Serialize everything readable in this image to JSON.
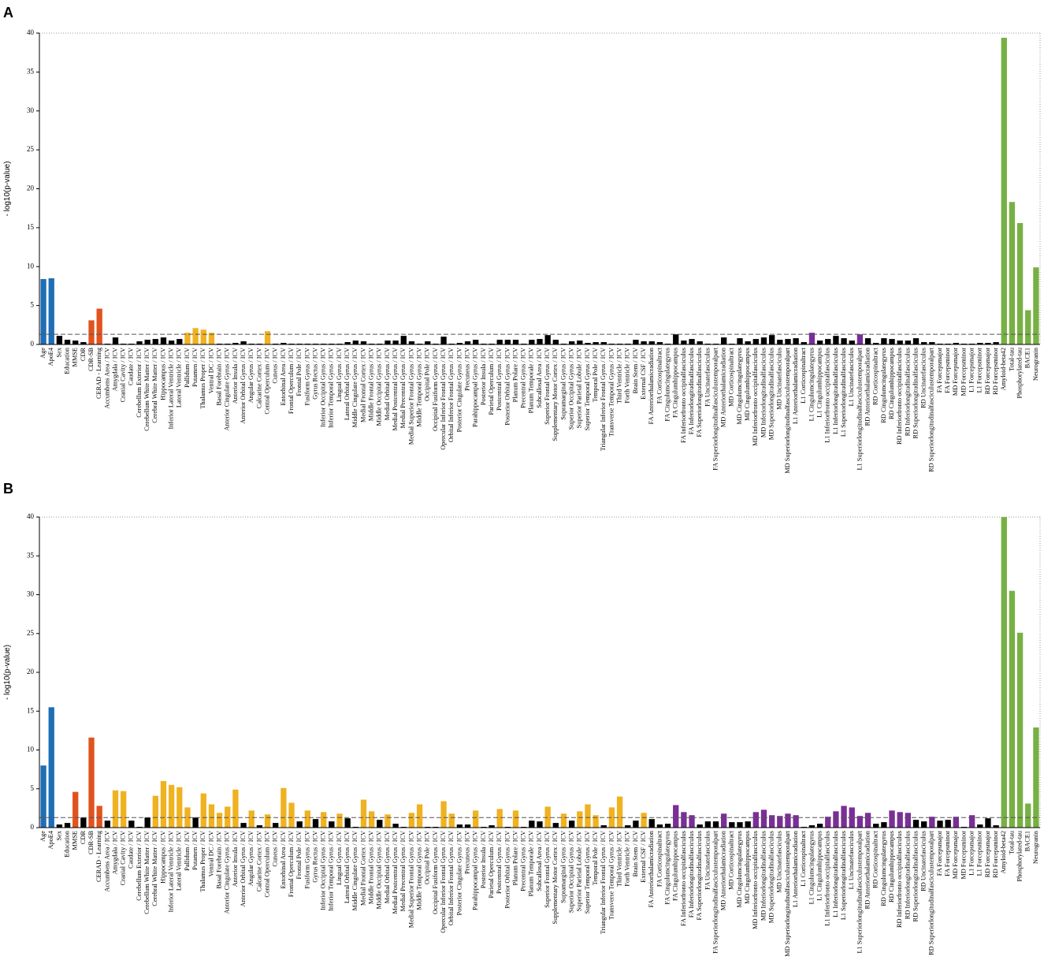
{
  "chart_data": [
    {
      "type": "bar",
      "panel_label": "A",
      "ylabel": "- log10(p-value)",
      "ylim": [
        0,
        40
      ],
      "yticks": [
        0,
        5,
        10,
        15,
        20,
        25,
        30,
        35,
        40
      ],
      "reference_line": 1.3,
      "categories": [
        "Age",
        "ApoE4",
        "Sex",
        "Education",
        "MMSE",
        "CDR",
        "CDR-SB",
        "CERAD - Learning",
        "Accumbens Area / ICV",
        "Amygdala / ICV",
        "Cranial Cavity / ICV",
        "Caudate / ICV",
        "Cerebellum Exterior / ICV",
        "Cerebellum White Matter / ICV",
        "Cerebral White Matter / ICV",
        "Hippocampus / ICV",
        "Inferior Lateral Ventricle / ICV",
        "Lateral Ventricle / ICV",
        "Pallidum / ICV",
        "Putamen / ICV",
        "Thalamus Proper / ICV",
        "Ventral DC / ICV",
        "Basal Forebrain / ICV",
        "Anterior Cingulate Gyrus / ICV",
        "Anterior Insula / ICV",
        "Anterior Orbital Gyrus / ICV",
        "Angular Gyrus / ICV",
        "Calcarine Cortex / ICV",
        "Central Operculum / ICV",
        "Cuneus / ICV",
        "Entorhinal Area / ICV",
        "Frontal Operculum / ICV",
        "Frontal Pole / ICV",
        "Fusiform Gyrus / ICV",
        "Gyrus Rectus / ICV",
        "Inferior Occipital Gyrus / ICV",
        "Inferior Temporal Gyrus / ICV",
        "Lingual Gyrus / ICV",
        "Lateral Orbital Gyrus / ICV",
        "Middle Cingulate Gyrus / ICV",
        "Medial Frontal Cortex / ICV",
        "Middle Frontal Gyrus / ICV",
        "Middle Occipital Gyrus / ICV",
        "Medial Orbital Gyrus / ICV",
        "Medial Postcentral Gyrus / ICV",
        "Medial Precentral Gyrus / ICV",
        "Medial Superior Frontal Gyrus / ICV",
        "Middle Temporal Gyrus / ICV",
        "Occipital Pole / ICV",
        "Occipital Fusiform Gyrus / ICV",
        "Opercular Inferior Frontal Gyrus / ICV",
        "Orbital Inferior Frontal Gyrus / ICV",
        "Posterior Cingulate Gyrus / ICV",
        "Precuneus / ICV",
        "Parahippocampal Gyrus / ICV",
        "Posterior Insula / ICV",
        "Parietal Operculum / ICV",
        "Postcentral Gyrus / ICV",
        "Posterior Orbital Gyrus / ICV",
        "Planum Polare / ICV",
        "Precentral Gyrus / ICV",
        "Planum Temporale / ICV",
        "Subcallosal Area / ICV",
        "Superior Frontal Gyrus / ICV",
        "Supplementary Motor Cortex / ICV",
        "Supramarginal Gyrus / ICV",
        "Superior Occipital Gyrus / ICV",
        "Superior Parietal Lobule / ICV",
        "Superior Temporal Gyrus / ICV",
        "Temporal Pole / ICV",
        "Triangular Inferior Frontal Gyrus / ICV",
        "Transverse Temporal Gyrus / ICV",
        "Third Ventricle / ICV",
        "Forth Ventricle / ICV",
        "Brain Stem / ICV",
        "External CSF / ICV",
        "FA Anteriorthalamicradiation",
        "FA Corticospinaltract",
        "FA Cingulumcingulategyrus",
        "FA Cingulumhippocampus",
        "FA Inferiorfronto occipitalfasciculus",
        "FA Inferiorlongitudinalfasciculus",
        "FA Superiorlongitudinalfasciculus",
        "FA Uncinatefasciculus",
        "FA Superiorlongitudinalfasciculustemporalpart",
        "MD Anteriorthalamicradiation",
        "MD Corticospinaltract",
        "MD Cingulumcingulategyrus",
        "MD Cingulumhippocampus",
        "MD Inferiorfronto occipitalfasciculus",
        "MD Inferiorlongitudinalfasciculus",
        "MD Superiorlongitudinalfasciculus",
        "MD Uncinatefasciculus",
        "MD Superiorlongitudinalfasciculustemporalpart",
        "L1 Anteriorthalamicradiation",
        "L1 Corticospinaltract",
        "L1 Cingulumcingulategyrus",
        "L1 Cingulumhippocampus",
        "L1 Inferiorfronto occipitalfasciculus",
        "L1 Inferiorlongitudinalfasciculus",
        "L1 Superiorlongitudinalfasciculus",
        "L1 Uncinatefasciculus",
        "L1 Superiorlongitudinalfasciculustemporalpart",
        "RD Anteriorthalamicradiation",
        "RD Corticospinaltract",
        "RD Cingulumcingulategyrus",
        "RD Cingulumhippocampus",
        "RD Inferiorfronto occipitalfasciculus",
        "RD Inferiorlongitudinalfasciculus",
        "RD Superiorlongitudinalfasciculus",
        "RD Uncinatefasciculus",
        "RD Superiorlongitudinalfasciculustemporalpart",
        "FA Forcepsmajor",
        "FA Forcepsminor",
        "MD Forcepsmajor",
        "MD Forcepsminor",
        "L1 Forcepsmajor",
        "L1 Forcepsminor",
        "RD Forcepsmajor",
        "RD Forcepsminor",
        "Amyloid-beta42",
        "Total-tau",
        "Phosphorylated-tau",
        "BACE1",
        "Neurogranin"
      ],
      "values": [
        8.4,
        8.5,
        1.1,
        0.6,
        0.5,
        0.3,
        3.1,
        4.6,
        0.1,
        0.9,
        0.1,
        0.1,
        0.4,
        0.6,
        0.7,
        0.9,
        0.5,
        0.7,
        1.5,
        2.1,
        1.9,
        1.5,
        0.1,
        0.1,
        0.2,
        0.4,
        0.1,
        0.1,
        1.7,
        0.1,
        0.2,
        0.1,
        0.1,
        0.1,
        0.1,
        0.1,
        0.1,
        0.1,
        0.3,
        0.5,
        0.4,
        0.1,
        0.1,
        0.5,
        0.5,
        1.1,
        0.4,
        0.1,
        0.4,
        0.1,
        1.0,
        0.1,
        0.2,
        0.4,
        0.6,
        0.1,
        0.1,
        0.6,
        0.6,
        0.6,
        0.1,
        0.6,
        0.7,
        1.2,
        0.6,
        0.1,
        0.4,
        0.5,
        0.2,
        0.3,
        0.3,
        0.1,
        0.1,
        0.1,
        0.6,
        0.4,
        0.4,
        0.3,
        0.1,
        1.3,
        0.5,
        0.7,
        0.4,
        0.1,
        0.1,
        0.9,
        0.1,
        0.8,
        0.4,
        0.7,
        0.9,
        1.2,
        0.6,
        0.7,
        0.8,
        0.3,
        1.5,
        0.5,
        0.7,
        1.1,
        0.8,
        0.5,
        1.3,
        0.8,
        0.2,
        0.8,
        0.7,
        0.5,
        0.5,
        0.8,
        0.3,
        0.3,
        0.1,
        0.1,
        0.2,
        0.1,
        0.1,
        0.2,
        0.2,
        0.3,
        39.4,
        18.3,
        15.6,
        4.4,
        9.9
      ],
      "colors": [
        "#1f6db5",
        "#1f6db5",
        "#000",
        "#000",
        "#000",
        "#000",
        "#e0531f",
        "#e0531f",
        "#000",
        "#000",
        "#000",
        "#000",
        "#000",
        "#000",
        "#000",
        "#000",
        "#000",
        "#000",
        "#efb221",
        "#efb221",
        "#efb221",
        "#efb221",
        "#000",
        "#000",
        "#000",
        "#000",
        "#000",
        "#000",
        "#efb221",
        "#000",
        "#000",
        "#000",
        "#000",
        "#000",
        "#000",
        "#000",
        "#000",
        "#000",
        "#000",
        "#000",
        "#000",
        "#000",
        "#000",
        "#000",
        "#000",
        "#000",
        "#000",
        "#000",
        "#000",
        "#000",
        "#000",
        "#000",
        "#000",
        "#000",
        "#000",
        "#000",
        "#000",
        "#000",
        "#000",
        "#000",
        "#000",
        "#000",
        "#000",
        "#000",
        "#000",
        "#000",
        "#000",
        "#000",
        "#000",
        "#000",
        "#000",
        "#000",
        "#000",
        "#000",
        "#000",
        "#000",
        "#000",
        "#000",
        "#000",
        "#000",
        "#000",
        "#000",
        "#000",
        "#000",
        "#000",
        "#000",
        "#000",
        "#000",
        "#000",
        "#000",
        "#000",
        "#000",
        "#000",
        "#000",
        "#000",
        "#000",
        "#7a2e96",
        "#000",
        "#000",
        "#000",
        "#000",
        "#000",
        "#7a2e96",
        "#000",
        "#000",
        "#000",
        "#000",
        "#000",
        "#000",
        "#000",
        "#000",
        "#000",
        "#000",
        "#000",
        "#000",
        "#000",
        "#000",
        "#000",
        "#000",
        "#000",
        "#77b043",
        "#77b043",
        "#77b043",
        "#77b043",
        "#77b043"
      ]
    },
    {
      "type": "bar",
      "panel_label": "B",
      "ylabel": "- log10(p-value)",
      "ylim": [
        0,
        40
      ],
      "yticks": [
        0,
        5,
        10,
        15,
        20,
        25,
        30,
        35,
        40
      ],
      "reference_line": 1.3,
      "categories": [
        "Age",
        "ApoE4",
        "Sex",
        "Education",
        "MMSE",
        "CDR",
        "CDR-SB",
        "CERAD - Learning",
        "Accumbens Area / ICV",
        "Amygdala / ICV",
        "Cranial Cavity / ICV",
        "Caudate / ICV",
        "Cerebellum Exterior / ICV",
        "Cerebellum White Matter / ICV",
        "Cerebral White Matter / ICV",
        "Hippocampus / ICV",
        "Inferior Lateral Ventricle / ICV",
        "Lateral Ventricle / ICV",
        "Pallidum / ICV",
        "Putamen / ICV",
        "Thalamus Proper / ICV",
        "Ventral DC / ICV",
        "Basal Forebrain / ICV",
        "Anterior Cingulate Gyrus / ICV",
        "Anterior Insula / ICV",
        "Anterior Orbital Gyrus / ICV",
        "Angular Gyrus / ICV",
        "Calcarine Cortex / ICV",
        "Central Operculum / ICV",
        "Cuneus / ICV",
        "Entorhinal Area / ICV",
        "Frontal Operculum / ICV",
        "Frontal Pole / ICV",
        "Fusiform Gyrus / ICV",
        "Gyrus Rectus / ICV",
        "Inferior Occipital Gyrus / ICV",
        "Inferior Temporal Gyrus / ICV",
        "Lingual Gyrus / ICV",
        "Lateral Orbital Gyrus / ICV",
        "Middle Cingulate Gyrus / ICV",
        "Medial Frontal Cortex / ICV",
        "Middle Frontal Gyrus / ICV",
        "Middle Occipital Gyrus / ICV",
        "Medial Orbital Gyrus / ICV",
        "Medial Postcentral Gyrus / ICV",
        "Medial Precentral Gyrus / ICV",
        "Medial Superior Frontal Gyrus / ICV",
        "Middle Temporal Gyrus / ICV",
        "Occipital Pole / ICV",
        "Occipital Fusiform Gyrus / ICV",
        "Opercular Inferior Frontal Gyrus / ICV",
        "Orbital Inferior Frontal Gyrus / ICV",
        "Posterior Cingulate Gyrus / ICV",
        "Precuneus / ICV",
        "Parahippocampal Gyrus / ICV",
        "Posterior Insula / ICV",
        "Parietal Operculum / ICV",
        "Postcentral Gyrus / ICV",
        "Posterior Orbital Gyrus / ICV",
        "Planum Polare / ICV",
        "Precentral Gyrus / ICV",
        "Planum Temporale / ICV",
        "Subcallosal Area / ICV",
        "Superior Frontal Gyrus / ICV",
        "Supplementary Motor Cortex / ICV",
        "Supramarginal Gyrus / ICV",
        "Superior Occipital Gyrus / ICV",
        "Superior Parietal Lobule / ICV",
        "Superior Temporal Gyrus / ICV",
        "Temporal Pole / ICV",
        "Triangular Inferior Frontal Gyrus / ICV",
        "Transverse Temporal Gyrus / ICV",
        "Third Ventricle / ICV",
        "Forth Ventricle / ICV",
        "Brain Stem / ICV",
        "External CSF / ICV",
        "FA Anteriorthalamicradiation",
        "FA Corticospinaltract",
        "FA Cingulumcingulategyrus",
        "FA Cingulumhippocampus",
        "FA Inferiorfronto occipitalfasciculus",
        "FA Inferiorlongitudinalfasciculus",
        "FA Superiorlongitudinalfasciculus",
        "FA Uncinatefasciculus",
        "FA Superiorlongitudinalfasciculustemporalpart",
        "MD Anteriorthalamicradiation",
        "MD Corticospinaltract",
        "MD Cingulumcingulategyrus",
        "MD Cingulumhippocampus",
        "MD Inferiorfronto occipitalfasciculus",
        "MD Inferiorlongitudinalfasciculus",
        "MD Superiorlongitudinalfasciculus",
        "MD Uncinatefasciculus",
        "MD Superiorlongitudinalfasciculustemporalpart",
        "L1 Anteriorthalamicradiation",
        "L1 Corticospinaltract",
        "L1 Cingulumcingulategyrus",
        "L1 Cingulumhippocampus",
        "L1 Inferiorfronto occipitalfasciculus",
        "L1 Inferiorlongitudinalfasciculus",
        "L1 Superiorlongitudinalfasciculus",
        "L1 Uncinatefasciculus",
        "L1 Superiorlongitudinalfasciculustemporalpart",
        "RD Anteriorthalamicradiation",
        "RD Corticospinaltract",
        "RD Cingulumcingulategyrus",
        "RD Cingulumhippocampus",
        "RD Inferiorfronto occipitalfasciculus",
        "RD Inferiorlongitudinalfasciculus",
        "RD Superiorlongitudinalfasciculus",
        "RD Uncinatefasciculus",
        "RD Superiorlongitudinalfasciculustemporalpart",
        "FA Forcepsmajor",
        "FA Forcepsminor",
        "MD Forcepsmajor",
        "MD Forcepsminor",
        "L1 Forcepsmajor",
        "L1 Forcepsminor",
        "RD Forcepsmajor",
        "RD Forcepsminor",
        "Amyloid-beta42",
        "Total-tau",
        "Phosphorylated-tau",
        "BACE1",
        "Neurogranin"
      ],
      "values": [
        8.0,
        15.5,
        0.4,
        0.6,
        4.6,
        1.3,
        11.6,
        2.8,
        0.9,
        4.8,
        4.7,
        0.9,
        0.1,
        1.3,
        4.1,
        6.0,
        5.5,
        5.2,
        2.6,
        1.3,
        4.4,
        3.0,
        1.9,
        2.7,
        4.9,
        0.6,
        2.2,
        0.3,
        1.7,
        0.6,
        5.1,
        3.2,
        0.8,
        2.2,
        1.1,
        2.0,
        0.8,
        1.8,
        1.2,
        0.1,
        3.6,
        2.1,
        1.0,
        1.7,
        0.5,
        0.1,
        1.9,
        3.0,
        0.1,
        0.1,
        3.4,
        1.8,
        0.4,
        0.4,
        2.2,
        0.1,
        0.3,
        2.4,
        0.1,
        2.2,
        0.1,
        0.9,
        0.8,
        2.7,
        0.6,
        1.8,
        0.9,
        2.1,
        3.0,
        1.6,
        0.3,
        2.6,
        4.0,
        0.3,
        0.9,
        1.9,
        1.1,
        0.4,
        0.5,
        2.9,
        2.0,
        1.6,
        0.4,
        0.8,
        0.8,
        1.8,
        0.7,
        0.7,
        0.8,
        2.0,
        2.3,
        1.6,
        1.5,
        1.8,
        1.6,
        0.1,
        0.3,
        0.5,
        1.4,
        2.1,
        2.8,
        2.6,
        1.5,
        1.9,
        0.5,
        0.7,
        2.2,
        2.0,
        1.9,
        1.0,
        0.8,
        1.4,
        0.9,
        1.0,
        1.4,
        0.1,
        1.6,
        0.4,
        1.2,
        0.3,
        40,
        30.5,
        25.1,
        3.1,
        12.9
      ],
      "colors": [
        "#1f6db5",
        "#1f6db5",
        "#000",
        "#000",
        "#e0531f",
        "#000",
        "#e0531f",
        "#e0531f",
        "#000",
        "#efb221",
        "#efb221",
        "#000",
        "#000",
        "#000",
        "#efb221",
        "#efb221",
        "#efb221",
        "#efb221",
        "#efb221",
        "#000",
        "#efb221",
        "#efb221",
        "#efb221",
        "#efb221",
        "#efb221",
        "#000",
        "#efb221",
        "#000",
        "#efb221",
        "#000",
        "#efb221",
        "#efb221",
        "#000",
        "#efb221",
        "#000",
        "#efb221",
        "#000",
        "#efb221",
        "#000",
        "#000",
        "#efb221",
        "#efb221",
        "#000",
        "#efb221",
        "#000",
        "#000",
        "#efb221",
        "#efb221",
        "#000",
        "#000",
        "#efb221",
        "#efb221",
        "#000",
        "#000",
        "#efb221",
        "#000",
        "#000",
        "#efb221",
        "#000",
        "#efb221",
        "#000",
        "#000",
        "#000",
        "#efb221",
        "#000",
        "#efb221",
        "#000",
        "#efb221",
        "#efb221",
        "#efb221",
        "#000",
        "#efb221",
        "#efb221",
        "#000",
        "#000",
        "#efb221",
        "#000",
        "#000",
        "#000",
        "#7a2e96",
        "#7a2e96",
        "#7a2e96",
        "#000",
        "#000",
        "#000",
        "#7a2e96",
        "#000",
        "#000",
        "#000",
        "#7a2e96",
        "#7a2e96",
        "#7a2e96",
        "#7a2e96",
        "#7a2e96",
        "#7a2e96",
        "#000",
        "#000",
        "#000",
        "#7a2e96",
        "#7a2e96",
        "#7a2e96",
        "#7a2e96",
        "#7a2e96",
        "#7a2e96",
        "#000",
        "#000",
        "#7a2e96",
        "#7a2e96",
        "#7a2e96",
        "#000",
        "#000",
        "#7a2e96",
        "#000",
        "#000",
        "#7a2e96",
        "#000",
        "#7a2e96",
        "#000",
        "#000",
        "#000",
        "#77b043",
        "#77b043",
        "#77b043",
        "#77b043",
        "#77b043"
      ]
    }
  ]
}
